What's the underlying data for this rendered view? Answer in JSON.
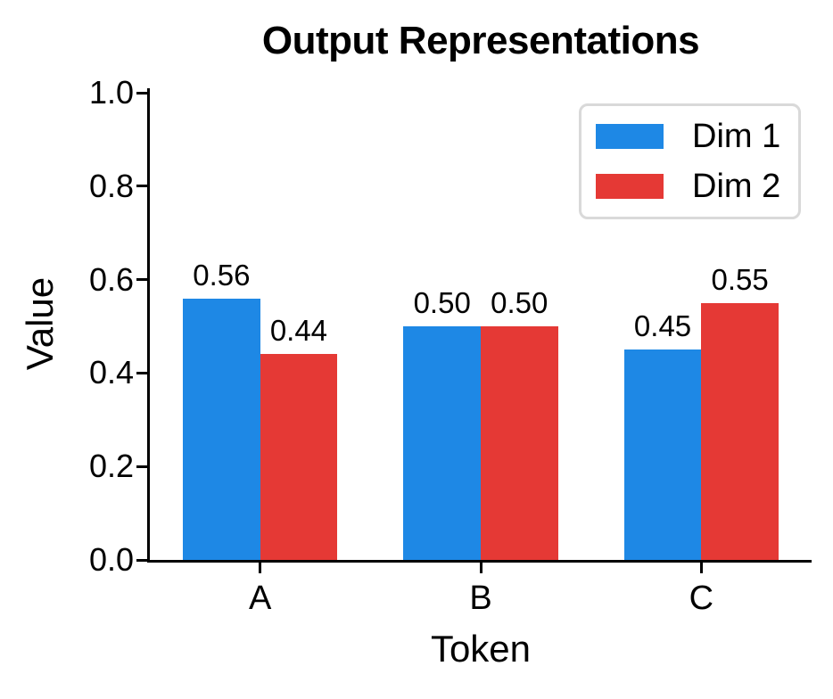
{
  "chart_data": {
    "type": "bar",
    "title": "Output Representations",
    "xlabel": "Token",
    "ylabel": "Value",
    "categories": [
      "A",
      "B",
      "C"
    ],
    "series": [
      {
        "name": "Dim 1",
        "color": "#1E88E5",
        "values": [
          0.56,
          0.5,
          0.45
        ]
      },
      {
        "name": "Dim 2",
        "color": "#E53935",
        "values": [
          0.44,
          0.5,
          0.55
        ]
      }
    ],
    "ylim": [
      0,
      1.0
    ],
    "yticks": [
      "0.0",
      "0.2",
      "0.4",
      "0.6",
      "0.8",
      "1.0"
    ],
    "grid": false,
    "legend_position": "upper right",
    "bar_width_fraction": 0.35,
    "value_label_decimals": 2
  },
  "colors": {
    "text": "#000000",
    "axis": "#000000",
    "legend_border": "#d9d9d9",
    "background": "#ffffff"
  }
}
